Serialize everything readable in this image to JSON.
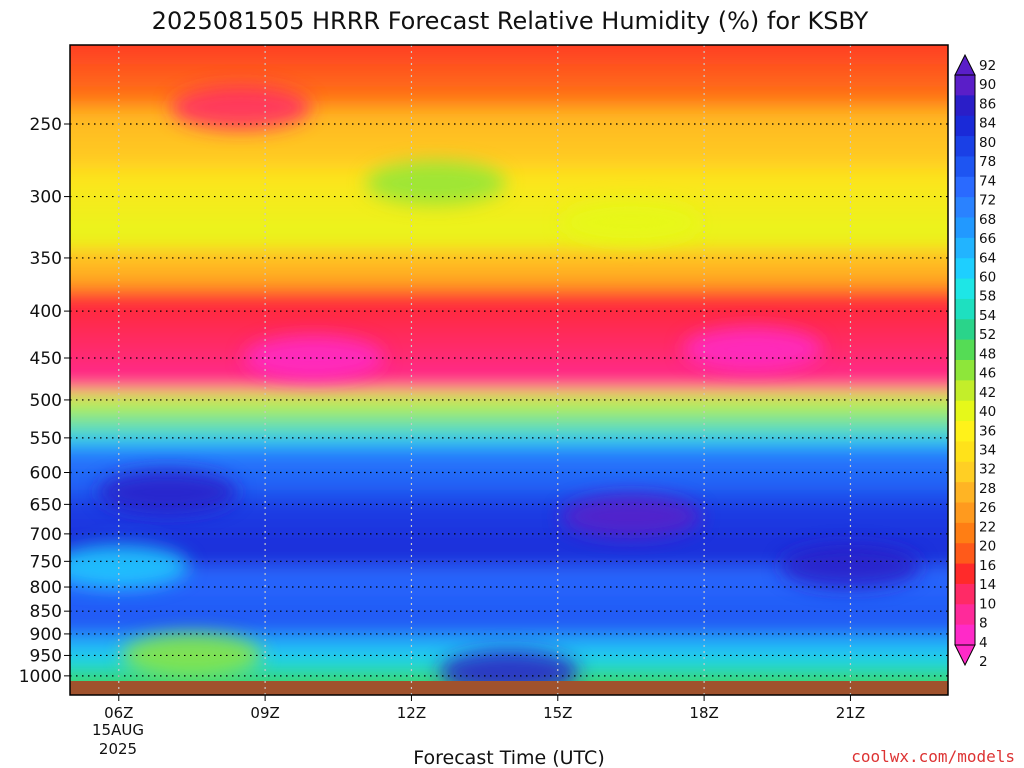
{
  "chart_data": {
    "type": "heatmap",
    "title": "2025081505 HRRR Forecast Relative Humidity (%) for KSBY",
    "xlabel": "Forecast Time (UTC)",
    "ylabel": "",
    "x_ticks": [
      "06Z",
      "09Z",
      "12Z",
      "15Z",
      "18Z",
      "21Z"
    ],
    "x_date_label": [
      "15AUG",
      "2025"
    ],
    "y_ticks": [
      250,
      300,
      350,
      400,
      450,
      500,
      550,
      600,
      650,
      700,
      750,
      800,
      850,
      900,
      950,
      1000
    ],
    "y_scale": "log-pressure",
    "x_range_hours": [
      5,
      23
    ],
    "grid": true,
    "colorbar_labels": [
      92,
      90,
      86,
      84,
      80,
      78,
      74,
      72,
      68,
      66,
      64,
      60,
      58,
      54,
      52,
      48,
      46,
      42,
      40,
      36,
      34,
      32,
      28,
      26,
      22,
      20,
      16,
      14,
      10,
      8,
      4,
      2
    ],
    "colorbar_colors": [
      "#ff2ac8",
      "#ff2a9a",
      "#ff2a66",
      "#ff2a2a",
      "#ff5a1a",
      "#ff7e14",
      "#ff9a1e",
      "#ffb424",
      "#ffcf24",
      "#ffe21a",
      "#fff21a",
      "#e6f81a",
      "#c3ee2a",
      "#8ee63a",
      "#55dc55",
      "#2ad48a",
      "#1ee0c0",
      "#1ee6e6",
      "#1ecfff",
      "#22b4ff",
      "#2299ff",
      "#2a82ff",
      "#2a6aff",
      "#1e55f2",
      "#1a40e6",
      "#1a2ad8",
      "#2a1ec8",
      "#5a1ec8"
    ],
    "bands": [
      {
        "rh_top": 12,
        "rh_bottom": 20,
        "p_bottom": 240
      },
      {
        "rh_top": 26,
        "rh_bottom": 30,
        "p_bottom": 280
      },
      {
        "rh_top": 34,
        "rh_bottom": 40,
        "p_bottom": 340
      },
      {
        "rh_top": 30,
        "rh_bottom": 24,
        "p_bottom": 380
      },
      {
        "rh_top": 14,
        "rh_bottom": 8,
        "p_bottom": 490
      },
      {
        "rh_top": 40,
        "rh_bottom": 60,
        "p_bottom": 560
      },
      {
        "rh_top": 72,
        "rh_bottom": 78,
        "p_bottom": 640
      },
      {
        "rh_top": 80,
        "rh_bottom": 84,
        "p_bottom": 760
      },
      {
        "rh_top": 74,
        "rh_bottom": 78,
        "p_bottom": 900
      },
      {
        "rh_top": 68,
        "rh_bottom": 58,
        "p_bottom": 980
      },
      {
        "rh_top": 52,
        "rh_bottom": 48,
        "p_bottom": 1013
      }
    ],
    "features": [
      {
        "hour": 8.5,
        "p": 240,
        "rh": 10
      },
      {
        "hour": 12.5,
        "p": 290,
        "rh": 44
      },
      {
        "hour": 16.5,
        "p": 320,
        "rh": 40
      },
      {
        "hour": 10,
        "p": 450,
        "rh": 4
      },
      {
        "hour": 19,
        "p": 440,
        "rh": 4
      },
      {
        "hour": 7,
        "p": 630,
        "rh": 86
      },
      {
        "hour": 16.5,
        "p": 670,
        "rh": 90
      },
      {
        "hour": 21,
        "p": 760,
        "rh": 88
      },
      {
        "hour": 6,
        "p": 760,
        "rh": 60
      },
      {
        "hour": 7.5,
        "p": 950,
        "rh": 46
      },
      {
        "hour": 14,
        "p": 990,
        "rh": 88
      }
    ]
  },
  "credit": "coolwx.com/models"
}
